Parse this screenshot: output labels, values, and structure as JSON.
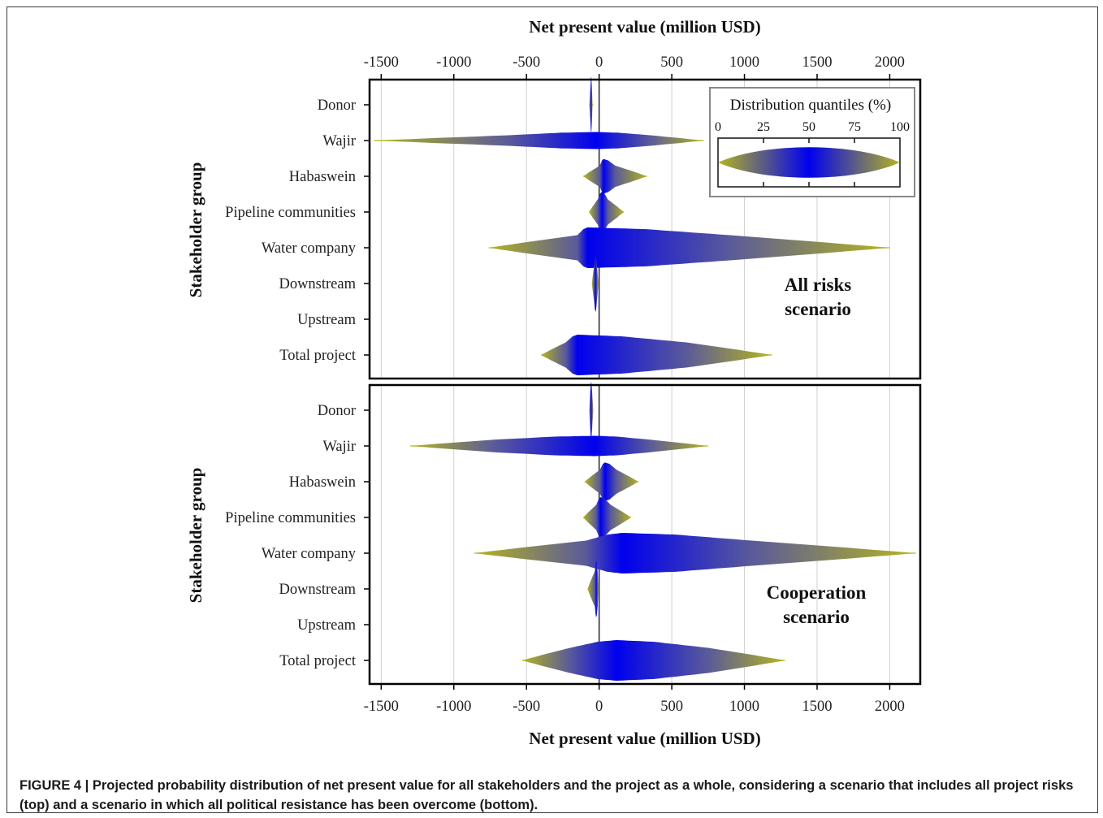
{
  "caption": "FIGURE 4 | Projected probability distribution of net present value for all stakeholders and the project as a whole, considering a scenario that includes all project risks (top) and a scenario in which all political resistance has been overcome (bottom).",
  "colors": {
    "center": "#0000ee",
    "tail": "#b5b520",
    "line": "#c8c840",
    "frame": "#000000",
    "grid": "#d0d0d0"
  },
  "legend": {
    "title": "Distribution quantiles (%)",
    "ticks": [
      "0",
      "25",
      "50",
      "75",
      "100"
    ]
  },
  "chart_data": {
    "type": "violin",
    "xlabel": "Net present value (million USD)",
    "ylabel": "Stakeholder group",
    "xlim": [
      -1580,
      2210
    ],
    "xticks": [
      -1500,
      -1000,
      -500,
      0,
      500,
      1000,
      1500,
      2000
    ],
    "xtick_labels": [
      "-1500",
      "-1000",
      "-500",
      "0",
      "500",
      "1000",
      "1500",
      "2000"
    ],
    "grid": "vertical",
    "categories": [
      "Donor",
      "Wajir",
      "Habaswein",
      "Pipeline communities",
      "Water company",
      "Downstream",
      "Upstream",
      "Total project"
    ],
    "panels": [
      {
        "scenario_label_line1": "All risks",
        "scenario_label_line2": "scenario",
        "series": [
          {
            "name": "Donor",
            "min": -70,
            "q": [
              -68,
              -60,
              -55,
              -50,
              -45
            ],
            "max": -40,
            "peak": 1.4
          },
          {
            "name": "Wajir",
            "min": -1550,
            "q": [
              -1545,
              -620,
              -20,
              350,
              720
            ],
            "max": 720,
            "peak": 0.42
          },
          {
            "name": "Habaswein",
            "min": -110,
            "q": [
              -110,
              5,
              30,
              110,
              330
            ],
            "max": 330,
            "peak": 0.85
          },
          {
            "name": "Pipeline communities",
            "min": -70,
            "q": [
              -70,
              -10,
              20,
              60,
              170
            ],
            "max": 170,
            "peak": 1.0
          },
          {
            "name": "Water company",
            "min": -760,
            "q": [
              -760,
              -150,
              -80,
              900,
              2000
            ],
            "max": 2000,
            "peak": 1.0
          },
          {
            "name": "Downstream",
            "min": -50,
            "q": [
              -50,
              -35,
              -25,
              -15,
              -5
            ],
            "max": -5,
            "peak": 1.4
          },
          {
            "name": "Upstream",
            "min": 0,
            "q": [
              0,
              0,
              0,
              0,
              0
            ],
            "max": 0,
            "peak": 0
          },
          {
            "name": "Total project",
            "min": -400,
            "q": [
              -400,
              -230,
              -150,
              600,
              1190
            ],
            "max": 1190,
            "peak": 1.0
          }
        ]
      },
      {
        "scenario_label_line1": "Cooperation",
        "scenario_label_line2": "scenario",
        "series": [
          {
            "name": "Donor",
            "min": -70,
            "q": [
              -68,
              -62,
              -55,
              -48,
              -40
            ],
            "max": -40,
            "peak": 1.4
          },
          {
            "name": "Wajir",
            "min": -1300,
            "q": [
              -1300,
              -720,
              -30,
              350,
              750
            ],
            "max": 750,
            "peak": 0.5
          },
          {
            "name": "Habaswein",
            "min": -100,
            "q": [
              -100,
              5,
              40,
              120,
              270
            ],
            "max": 270,
            "peak": 0.95
          },
          {
            "name": "Pipeline communities",
            "min": -110,
            "q": [
              -110,
              -20,
              10,
              80,
              220
            ],
            "max": 220,
            "peak": 1.0
          },
          {
            "name": "Water company",
            "min": -860,
            "q": [
              -860,
              -90,
              160,
              1050,
              2180
            ],
            "max": 2180,
            "peak": 1.0
          },
          {
            "name": "Downstream",
            "min": -80,
            "q": [
              -80,
              -30,
              -20,
              -10,
              -5
            ],
            "max": -5,
            "peak": 1.4
          },
          {
            "name": "Upstream",
            "min": 0,
            "q": [
              0,
              0,
              0,
              0,
              0
            ],
            "max": 0,
            "peak": 0
          },
          {
            "name": "Total project",
            "min": -530,
            "q": [
              -530,
              -200,
              120,
              750,
              1280
            ],
            "max": 1280,
            "peak": 1.0
          }
        ]
      }
    ]
  }
}
